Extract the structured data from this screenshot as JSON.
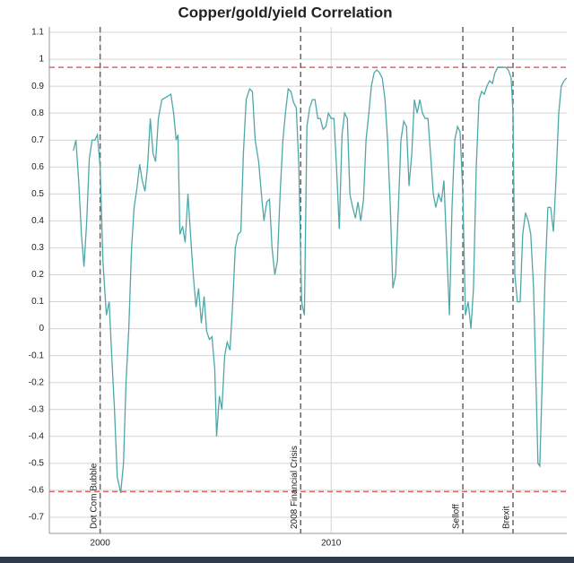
{
  "chart_data": {
    "type": "line",
    "title": "Copper/gold/yield Correlation",
    "x": [
      1998.84,
      1998.95,
      1999.07,
      1999.19,
      1999.3,
      1999.42,
      1999.53,
      1999.65,
      1999.77,
      1999.88,
      2000.0,
      2000.12,
      2000.27,
      2000.39,
      2000.5,
      2000.62,
      2000.74,
      2000.89,
      2001.01,
      2001.12,
      2001.24,
      2001.36,
      2001.47,
      2001.59,
      2001.71,
      2001.82,
      2001.94,
      2002.05,
      2002.17,
      2002.29,
      2002.4,
      2002.52,
      2002.67,
      2002.87,
      2003.06,
      2003.18,
      2003.29,
      2003.37,
      2003.45,
      2003.57,
      2003.68,
      2003.8,
      2003.91,
      2004.03,
      2004.15,
      2004.26,
      2004.38,
      2004.5,
      2004.61,
      2004.73,
      2004.84,
      2004.96,
      2005.04,
      2005.16,
      2005.27,
      2005.39,
      2005.5,
      2005.62,
      2005.74,
      2005.85,
      2005.97,
      2006.09,
      2006.2,
      2006.32,
      2006.47,
      2006.59,
      2006.71,
      2006.86,
      2006.98,
      2007.09,
      2007.21,
      2007.33,
      2007.44,
      2007.56,
      2007.67,
      2007.79,
      2007.91,
      2008.02,
      2008.14,
      2008.26,
      2008.37,
      2008.49,
      2008.6,
      2008.72,
      2008.84,
      2008.95,
      2009.07,
      2009.19,
      2009.3,
      2009.42,
      2009.53,
      2009.65,
      2009.77,
      2009.88,
      2010.0,
      2010.12,
      2010.23,
      2010.35,
      2010.47,
      2010.58,
      2010.7,
      2010.81,
      2010.93,
      2011.05,
      2011.16,
      2011.28,
      2011.4,
      2011.51,
      2011.63,
      2011.74,
      2011.86,
      2011.98,
      2012.09,
      2012.21,
      2012.33,
      2012.44,
      2012.56,
      2012.67,
      2012.79,
      2012.91,
      2013.02,
      2013.14,
      2013.26,
      2013.37,
      2013.49,
      2013.6,
      2013.72,
      2013.84,
      2013.95,
      2014.07,
      2014.19,
      2014.3,
      2014.42,
      2014.53,
      2014.65,
      2014.77,
      2014.88,
      2015.0,
      2015.12,
      2015.23,
      2015.35,
      2015.47,
      2015.58,
      2015.7,
      2015.81,
      2015.93,
      2016.05,
      2016.16,
      2016.28,
      2016.4,
      2016.51,
      2016.63,
      2016.74,
      2016.86,
      2016.98,
      2017.09,
      2017.21,
      2017.33,
      2017.44,
      2017.56,
      2017.67,
      2017.79,
      2017.87,
      2017.95,
      2018.06,
      2018.18,
      2018.29,
      2018.41,
      2018.53,
      2018.64,
      2018.76,
      2018.88,
      2018.95,
      2019.03,
      2019.15,
      2019.26,
      2019.38,
      2019.5,
      2019.62,
      2019.73,
      2019.85,
      2019.96,
      2020.08,
      2020.19
    ],
    "values": [
      0.66,
      0.7,
      0.55,
      0.35,
      0.23,
      0.4,
      0.63,
      0.7,
      0.7,
      0.72,
      0.6,
      0.25,
      0.05,
      0.1,
      -0.1,
      -0.3,
      -0.55,
      -0.61,
      -0.5,
      -0.2,
      0.0,
      0.3,
      0.45,
      0.52,
      0.61,
      0.55,
      0.51,
      0.6,
      0.78,
      0.65,
      0.62,
      0.78,
      0.85,
      0.86,
      0.87,
      0.8,
      0.7,
      0.72,
      0.35,
      0.38,
      0.32,
      0.5,
      0.35,
      0.2,
      0.08,
      0.15,
      0.02,
      0.12,
      -0.01,
      -0.04,
      -0.03,
      -0.15,
      -0.4,
      -0.25,
      -0.3,
      -0.1,
      -0.05,
      -0.08,
      0.1,
      0.3,
      0.35,
      0.36,
      0.65,
      0.85,
      0.89,
      0.88,
      0.7,
      0.62,
      0.5,
      0.4,
      0.47,
      0.48,
      0.3,
      0.2,
      0.25,
      0.5,
      0.7,
      0.8,
      0.89,
      0.88,
      0.84,
      0.82,
      0.6,
      0.1,
      0.05,
      0.75,
      0.82,
      0.85,
      0.85,
      0.78,
      0.78,
      0.74,
      0.75,
      0.8,
      0.78,
      0.78,
      0.6,
      0.37,
      0.72,
      0.8,
      0.78,
      0.5,
      0.45,
      0.41,
      0.47,
      0.4,
      0.48,
      0.7,
      0.8,
      0.9,
      0.95,
      0.96,
      0.95,
      0.93,
      0.85,
      0.7,
      0.45,
      0.15,
      0.2,
      0.45,
      0.7,
      0.77,
      0.75,
      0.53,
      0.65,
      0.85,
      0.8,
      0.85,
      0.8,
      0.78,
      0.78,
      0.65,
      0.5,
      0.45,
      0.5,
      0.47,
      0.55,
      0.3,
      0.05,
      0.45,
      0.7,
      0.75,
      0.73,
      0.5,
      0.05,
      0.1,
      0.0,
      0.15,
      0.6,
      0.85,
      0.88,
      0.87,
      0.9,
      0.92,
      0.91,
      0.95,
      0.97,
      0.97,
      0.97,
      0.97,
      0.96,
      0.93,
      0.8,
      0.2,
      0.1,
      0.1,
      0.35,
      0.43,
      0.4,
      0.35,
      0.15,
      -0.25,
      -0.5,
      -0.51,
      -0.15,
      0.2,
      0.45,
      0.45,
      0.36,
      0.55,
      0.8,
      0.9,
      0.92,
      0.93
    ],
    "color": "#4fa8a8",
    "xlim": [
      1997.8,
      2020.2
    ],
    "xticks": [
      2000,
      2010
    ],
    "ylim": [
      -0.76,
      1.12
    ],
    "yticks": [
      1.1,
      1,
      0.9,
      0.8,
      0.7,
      0.6,
      0.5,
      0.4,
      0.3,
      0.2,
      0.1,
      0,
      -0.1,
      -0.2,
      -0.3,
      -0.4,
      -0.5,
      -0.6,
      -0.7
    ],
    "grid": true,
    "hlines": [
      {
        "value": 0.97,
        "color": "#e06666"
      },
      {
        "value": -0.605,
        "color": "#e06666"
      }
    ],
    "events": [
      {
        "x": 2000.0,
        "label": "Dot Com Bubble"
      },
      {
        "x": 2008.68,
        "label": "2008 Financial Crisis"
      },
      {
        "x": 2015.7,
        "label": "Selloff"
      },
      {
        "x": 2017.87,
        "label": "Brexit"
      }
    ]
  }
}
